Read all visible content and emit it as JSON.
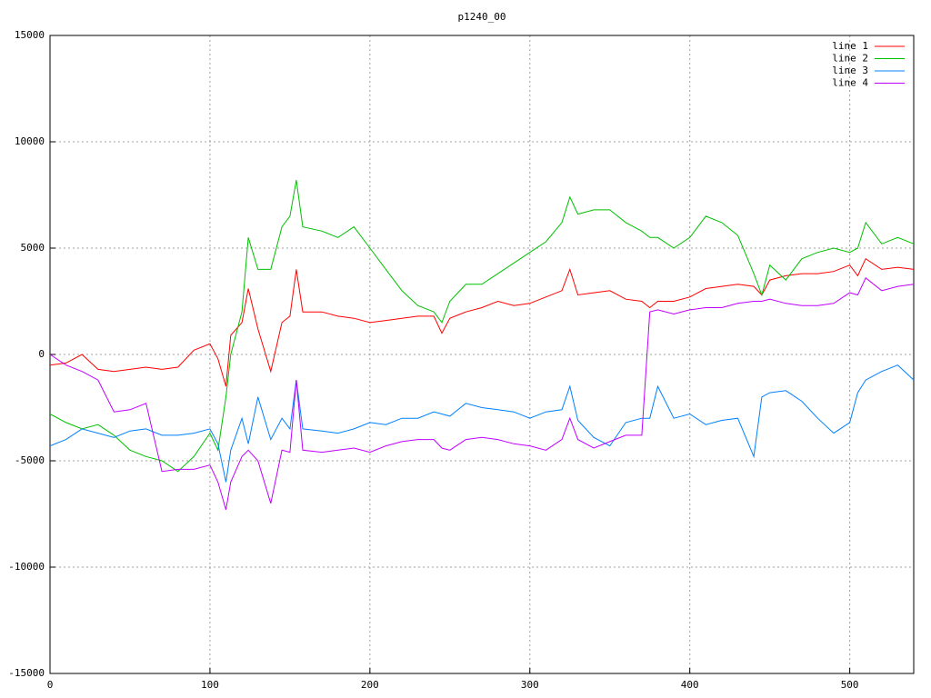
{
  "chart_data": {
    "type": "line",
    "title": "p1240_00",
    "x": [
      0,
      10,
      20,
      30,
      40,
      50,
      60,
      70,
      80,
      90,
      100,
      105,
      110,
      113,
      120,
      124,
      130,
      138,
      145,
      150,
      154,
      158,
      170,
      180,
      190,
      200,
      210,
      220,
      230,
      240,
      245,
      250,
      260,
      270,
      280,
      290,
      300,
      310,
      320,
      325,
      330,
      340,
      350,
      360,
      370,
      375,
      380,
      390,
      400,
      410,
      420,
      430,
      440,
      445,
      450,
      460,
      470,
      480,
      490,
      500,
      505,
      510,
      520,
      530,
      540
    ],
    "series": [
      {
        "name": "line 1",
        "color": "#ff0000",
        "values": [
          -500,
          -400,
          0,
          -700,
          -800,
          -700,
          -600,
          -700,
          -600,
          200,
          500,
          -200,
          -1500,
          900,
          1500,
          3100,
          1200,
          -800,
          1500,
          1800,
          4000,
          2000,
          2000,
          1800,
          1700,
          1500,
          1600,
          1700,
          1800,
          1800,
          1000,
          1700,
          2000,
          2200,
          2500,
          2300,
          2400,
          2700,
          3000,
          4000,
          2800,
          2900,
          3000,
          2600,
          2500,
          2200,
          2500,
          2500,
          2700,
          3100,
          3200,
          3300,
          3200,
          2800,
          3500,
          3700,
          3800,
          3800,
          3900,
          4200,
          3700,
          4500,
          4000,
          4100,
          4000
        ]
      },
      {
        "name": "line 2",
        "color": "#00c000",
        "values": [
          -2800,
          -3200,
          -3500,
          -3300,
          -3800,
          -4500,
          -4800,
          -5000,
          -5500,
          -4800,
          -3700,
          -4500,
          -2000,
          0,
          2000,
          5500,
          4000,
          4000,
          6000,
          6500,
          8200,
          6000,
          5800,
          5500,
          6000,
          5000,
          4000,
          3000,
          2300,
          2000,
          1500,
          2500,
          3300,
          3300,
          3800,
          4300,
          4800,
          5300,
          6200,
          7400,
          6600,
          6800,
          6800,
          6200,
          5800,
          5500,
          5500,
          5000,
          5500,
          6500,
          6200,
          5600,
          3800,
          2800,
          4200,
          3500,
          4500,
          4800,
          5000,
          4800,
          5000,
          6200,
          5200,
          5500,
          5200
        ]
      },
      {
        "name": "line 3",
        "color": "#0080ff",
        "values": [
          -4300,
          -4000,
          -3500,
          -3700,
          -3900,
          -3600,
          -3500,
          -3800,
          -3800,
          -3700,
          -3500,
          -4200,
          -6000,
          -4500,
          -3000,
          -4200,
          -2000,
          -4000,
          -3000,
          -3500,
          -1200,
          -3500,
          -3600,
          -3700,
          -3500,
          -3200,
          -3300,
          -3000,
          -3000,
          -2700,
          -2800,
          -2900,
          -2300,
          -2500,
          -2600,
          -2700,
          -3000,
          -2700,
          -2600,
          -1500,
          -3100,
          -3900,
          -4300,
          -3200,
          -3000,
          -3000,
          -1500,
          -3000,
          -2800,
          -3300,
          -3100,
          -3000,
          -4800,
          -2000,
          -1800,
          -1700,
          -2200,
          -3000,
          -3700,
          -3200,
          -1800,
          -1200,
          -800,
          -500,
          -1200
        ]
      },
      {
        "name": "line 4",
        "color": "#c000ff",
        "values": [
          0,
          -500,
          -800,
          -1200,
          -2700,
          -2600,
          -2300,
          -5500,
          -5400,
          -5400,
          -5200,
          -6000,
          -7300,
          -6000,
          -4800,
          -4500,
          -5000,
          -7000,
          -4500,
          -4600,
          -1200,
          -4500,
          -4600,
          -4500,
          -4400,
          -4600,
          -4300,
          -4100,
          -4000,
          -4000,
          -4400,
          -4500,
          -4000,
          -3900,
          -4000,
          -4200,
          -4300,
          -4500,
          -4000,
          -3000,
          -4000,
          -4400,
          -4100,
          -3800,
          -3800,
          2000,
          2100,
          1900,
          2100,
          2200,
          2200,
          2400,
          2500,
          2500,
          2600,
          2400,
          2300,
          2300,
          2400,
          2900,
          2800,
          3600,
          3000,
          3200,
          3300
        ]
      }
    ],
    "xlim": [
      0,
      540
    ],
    "xticks": [
      0,
      100,
      200,
      300,
      400,
      500
    ],
    "ylim": [
      -15000,
      15000
    ],
    "yticks": [
      -15000,
      -10000,
      -5000,
      0,
      5000,
      10000,
      15000
    ],
    "grid": true,
    "legend": "top-right"
  }
}
